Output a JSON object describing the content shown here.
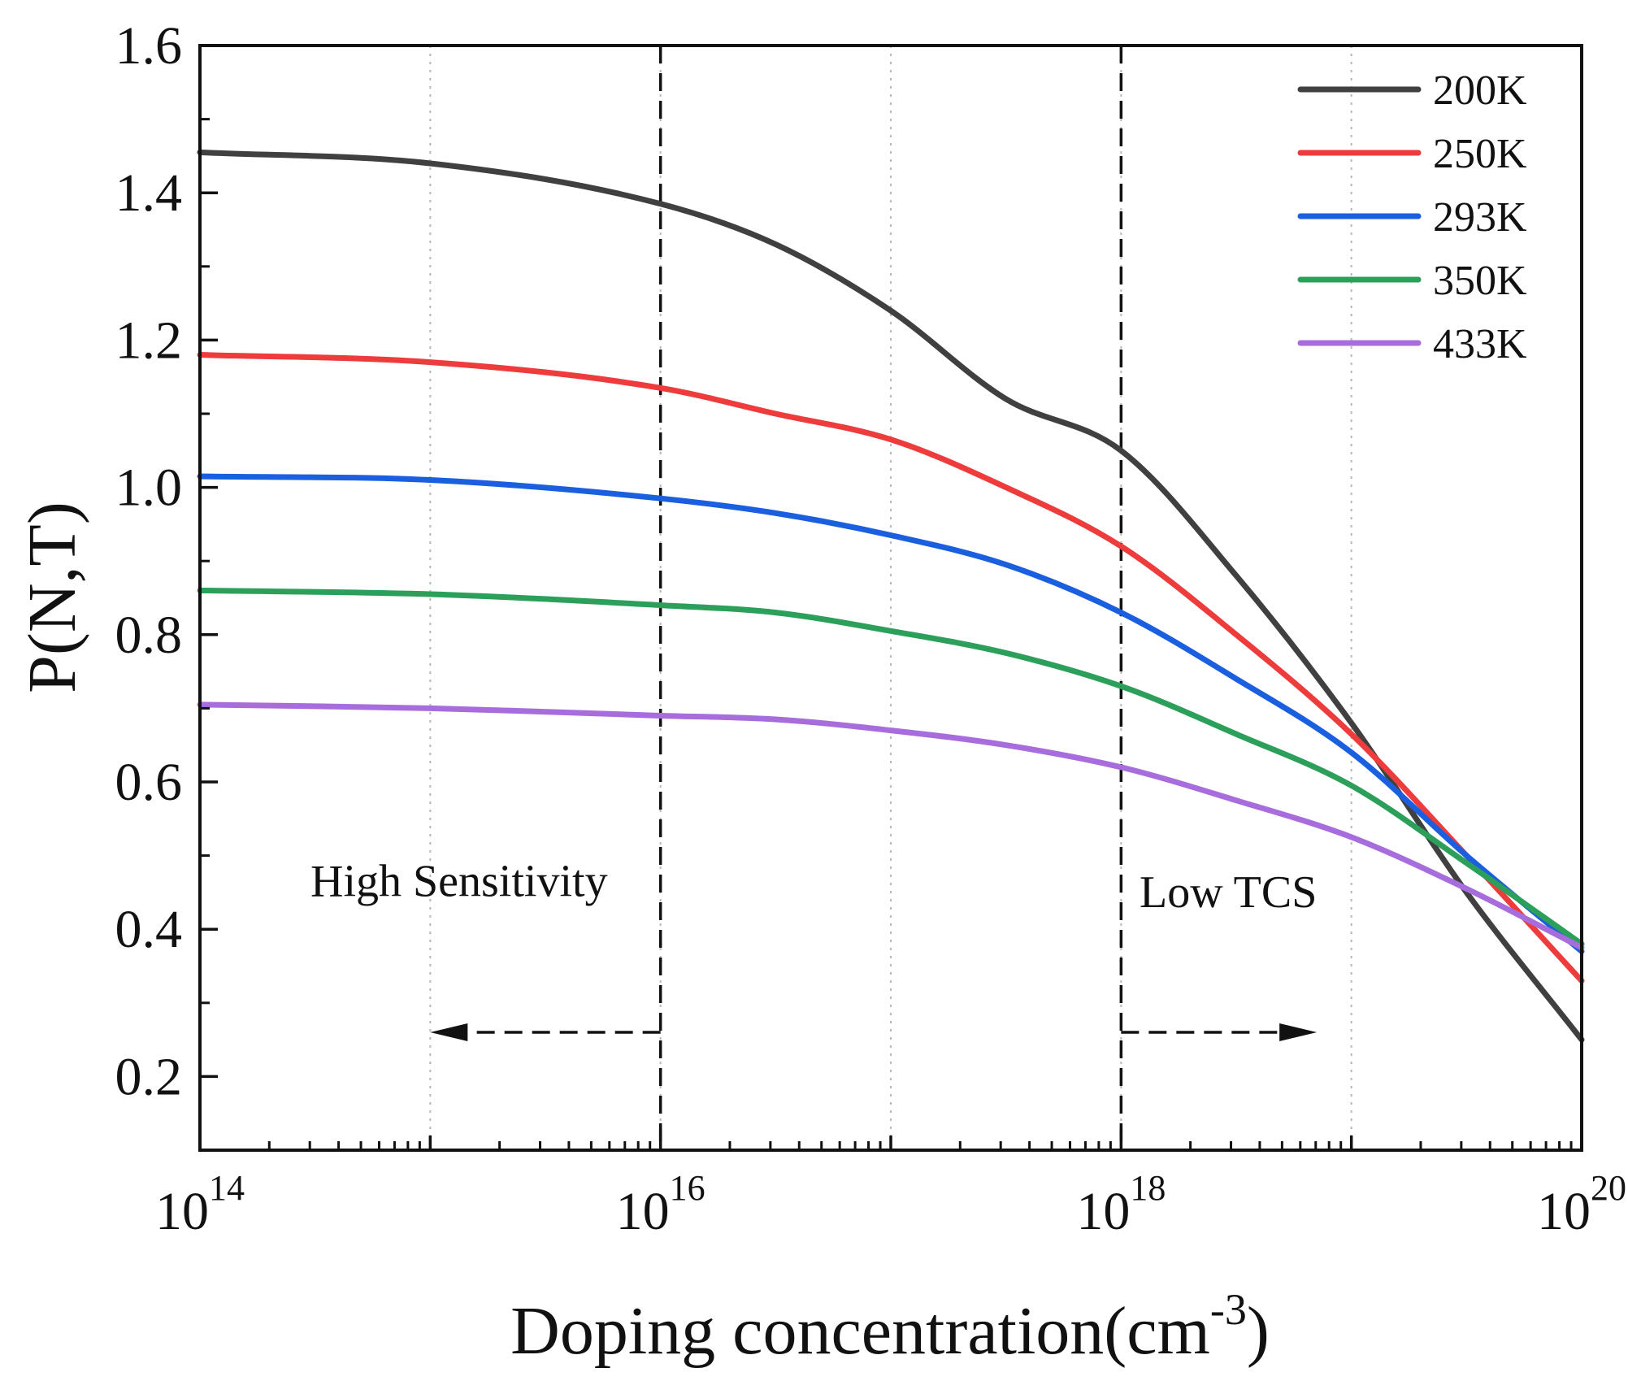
{
  "chart_data": {
    "type": "line",
    "xscale": "log",
    "xlim_exp": [
      14,
      20
    ],
    "ylim": [
      0.1,
      1.6
    ],
    "xlabel": "Doping concentration(cm",
    "xlabel_sup": "-3",
    "xlabel_end": ")",
    "ylabel": "P(N,T)",
    "x_ticks": [
      {
        "base": "10",
        "exp": "14",
        "value_exp": 14
      },
      {
        "base": "10",
        "exp": "16",
        "value_exp": 16
      },
      {
        "base": "10",
        "exp": "18",
        "value_exp": 18
      },
      {
        "base": "10",
        "exp": "20",
        "value_exp": 20
      }
    ],
    "y_ticks": [
      {
        "label": "0.2",
        "value": 0.2
      },
      {
        "label": "0.4",
        "value": 0.4
      },
      {
        "label": "0.6",
        "value": 0.6
      },
      {
        "label": "0.8",
        "value": 0.8
      },
      {
        "label": "1.0",
        "value": 1.0
      },
      {
        "label": "1.2",
        "value": 1.2
      },
      {
        "label": "1.4",
        "value": 1.4
      },
      {
        "label": "1.6",
        "value": 1.6
      }
    ],
    "grid": "vertical dotted at each decade",
    "legend_position": "top-right",
    "series": [
      {
        "name": "200K",
        "color": "#404040",
        "x_exp": [
          14,
          15,
          16,
          16.5,
          17,
          17.5,
          18,
          18.5,
          19,
          19.5,
          20
        ],
        "y": [
          1.455,
          1.44,
          1.385,
          1.33,
          1.24,
          1.12,
          1.05,
          0.88,
          0.68,
          0.45,
          0.25
        ]
      },
      {
        "name": "250K",
        "color": "#ee3b3b",
        "x_exp": [
          14,
          15,
          16,
          16.5,
          17,
          17.5,
          18,
          18.5,
          19,
          19.5,
          20
        ],
        "y": [
          1.18,
          1.17,
          1.135,
          1.1,
          1.065,
          1.0,
          0.92,
          0.8,
          0.665,
          0.5,
          0.33
        ]
      },
      {
        "name": "293K",
        "color": "#1a5fe0",
        "x_exp": [
          14,
          15,
          16,
          16.5,
          17,
          17.5,
          18,
          18.5,
          19,
          19.5,
          20
        ],
        "y": [
          1.015,
          1.01,
          0.985,
          0.965,
          0.935,
          0.895,
          0.83,
          0.74,
          0.64,
          0.5,
          0.37
        ]
      },
      {
        "name": "350K",
        "color": "#2ca05a",
        "x_exp": [
          14,
          15,
          16,
          16.5,
          17,
          17.5,
          18,
          18.5,
          19,
          19.5,
          20
        ],
        "y": [
          0.86,
          0.855,
          0.84,
          0.83,
          0.805,
          0.775,
          0.73,
          0.665,
          0.595,
          0.49,
          0.38
        ]
      },
      {
        "name": "433K",
        "color": "#a86ddd",
        "x_exp": [
          14,
          15,
          16,
          16.5,
          17,
          17.5,
          18,
          18.5,
          19,
          19.5,
          20
        ],
        "y": [
          0.705,
          0.7,
          0.69,
          0.685,
          0.67,
          0.65,
          0.62,
          0.575,
          0.525,
          0.455,
          0.375
        ]
      }
    ],
    "reference_lines": [
      {
        "x_exp": 16
      },
      {
        "x_exp": 18
      }
    ],
    "arrows": [
      {
        "from_exp": 16,
        "to_exp": 15.0,
        "y": 0.26,
        "direction": "left"
      },
      {
        "from_exp": 18,
        "to_exp": 18.85,
        "y": 0.26,
        "direction": "right"
      }
    ],
    "annotations": [
      {
        "text": "High Sensitivity",
        "x_exp": 14.48,
        "y": 0.445
      },
      {
        "text": "Low TCS",
        "x_exp": 18.08,
        "y": 0.43
      }
    ]
  }
}
